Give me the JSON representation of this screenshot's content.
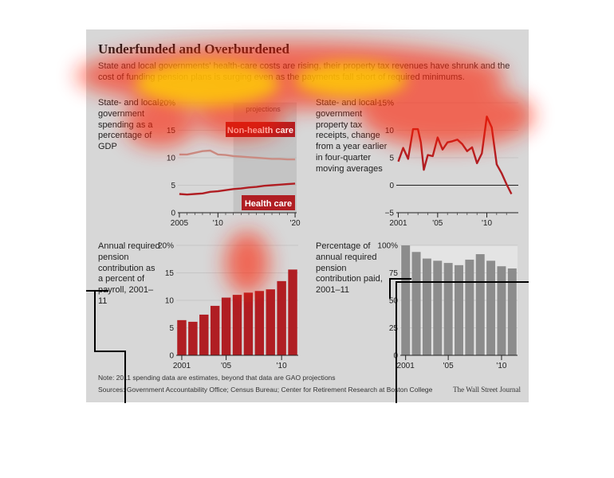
{
  "title": "Underfunded and Overburdened",
  "subtitle": "State and local governments' health-care costs are rising, their property tax revenues have shrunk and the cost of funding pension plans is surging even as the payments fall short of required minimums.",
  "note": "Note: 2011 spending data are estimates, beyond that data are GAO projections",
  "sources": "Sources: Government Accountability Office; Census Bureau; Center for Retirement Research at Boston College",
  "credit": "The Wall Street Journal",
  "colors": {
    "panel": "#d7d7d7",
    "red": "#b01e23",
    "pink": "#c98d84",
    "gray_bar": "#8c8c8c",
    "projection_band": "#c4c4c4",
    "heat": "#ff1e00"
  },
  "chart_data": [
    {
      "type": "line",
      "description": "State- and local-government spending as a percentage of GDP",
      "x": [
        2005,
        2006,
        2007,
        2008,
        2009,
        2010,
        2011,
        2012,
        2013,
        2014,
        2015,
        2016,
        2017,
        2018,
        2019,
        2020
      ],
      "series": [
        {
          "name": "Non-health care",
          "values": [
            10.6,
            10.6,
            10.9,
            11.2,
            11.3,
            10.6,
            10.5,
            10.3,
            10.2,
            10.1,
            10.0,
            9.9,
            9.8,
            9.8,
            9.7,
            9.7
          ]
        },
        {
          "name": "Health care",
          "values": [
            3.4,
            3.3,
            3.4,
            3.5,
            3.8,
            3.9,
            4.1,
            4.3,
            4.4,
            4.6,
            4.7,
            4.9,
            5.0,
            5.1,
            5.2,
            5.3
          ]
        }
      ],
      "xlim": [
        2004.8,
        2020.2
      ],
      "ylim": [
        0,
        20
      ],
      "yticks": [
        "0",
        "5",
        "10",
        "15",
        "20%"
      ],
      "xticks": [
        {
          "value": 2005,
          "label": "2005"
        },
        {
          "value": 2010,
          "label": "'10"
        },
        {
          "value": 2020,
          "label": "'20"
        }
      ],
      "annotations": [
        "projections"
      ],
      "projection_start": 2012
    },
    {
      "type": "line",
      "description": "State- and local-government property tax receipts, change from a year earlier in four-quarter moving averages",
      "x": [
        2001,
        2001.5,
        2002,
        2002.5,
        2003,
        2003.3,
        2003.6,
        2004,
        2004.5,
        2005,
        2005.5,
        2006,
        2006.5,
        2007,
        2007.5,
        2008,
        2008.5,
        2009,
        2009.5,
        2010,
        2010.5,
        2011,
        2011.5,
        2012,
        2012.5
      ],
      "series": [
        {
          "name": "",
          "values": [
            4.3,
            6.8,
            4.8,
            10.2,
            10.2,
            7.8,
            2.8,
            5.5,
            5.3,
            8.7,
            6.5,
            7.8,
            8.0,
            8.3,
            7.5,
            6.2,
            6.9,
            4.0,
            5.8,
            12.5,
            10.5,
            3.8,
            2.2,
            0.2,
            -1.6
          ]
        }
      ],
      "xlim": [
        2000.8,
        2013.2
      ],
      "ylim": [
        -5,
        15
      ],
      "yticks": [
        "−5",
        "0",
        "5",
        "10",
        "15%"
      ],
      "xticks": [
        {
          "value": 2001,
          "label": "2001"
        },
        {
          "value": 2005,
          "label": "'05"
        },
        {
          "value": 2010,
          "label": "'10"
        }
      ]
    },
    {
      "type": "bar",
      "description": "Annual required pension contribution as a percent of payroll, 2001–11",
      "categories": [
        2001,
        2002,
        2003,
        2004,
        2005,
        2006,
        2007,
        2008,
        2009,
        2010,
        2011
      ],
      "values": [
        6.4,
        6.1,
        7.4,
        9.0,
        10.5,
        11.0,
        11.4,
        11.7,
        12.0,
        13.5,
        15.6
      ],
      "ylim": [
        0,
        20
      ],
      "yticks": [
        "0",
        "5",
        "10",
        "15",
        "20%"
      ],
      "xticks": [
        {
          "value": 2001,
          "label": "2001"
        },
        {
          "value": 2005,
          "label": "'05"
        },
        {
          "value": 2010,
          "label": "'10"
        }
      ]
    },
    {
      "type": "bar",
      "description": "Percentage of annual required pension contribution paid, 2001–11",
      "categories": [
        2001,
        2002,
        2003,
        2004,
        2005,
        2006,
        2007,
        2008,
        2009,
        2010,
        2011
      ],
      "values": [
        100,
        94,
        88,
        86,
        84,
        82,
        87,
        92,
        86,
        81,
        79
      ],
      "ylim": [
        0,
        100
      ],
      "yticks": [
        "0",
        "25",
        "50",
        "75",
        "100%"
      ],
      "xticks": [
        {
          "value": 2001,
          "label": "2001"
        },
        {
          "value": 2005,
          "label": "'05"
        },
        {
          "value": 2010,
          "label": "'10"
        }
      ]
    }
  ],
  "labels": {
    "non_health": "Non-health care",
    "health": "Health care"
  }
}
